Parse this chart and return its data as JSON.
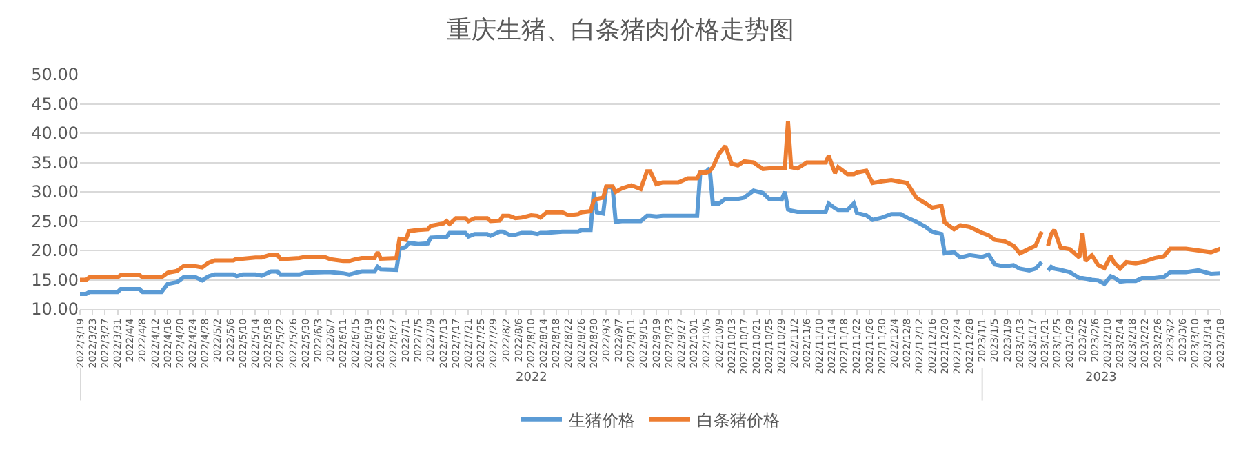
{
  "chart_data": {
    "type": "line",
    "title": "重庆生猪、白条猪肉价格走势图",
    "x": [
      "2022-03-19",
      "2022-03-21",
      "2022-03-22",
      "2022-03-31",
      "2022-04-01",
      "2022-04-07",
      "2022-04-08",
      "2022-04-14",
      "2022-04-16",
      "2022-04-19",
      "2022-04-21",
      "2022-04-25",
      "2022-04-27",
      "2022-04-29",
      "2022-05-01",
      "2022-05-07",
      "2022-05-08",
      "2022-05-10",
      "2022-05-14",
      "2022-05-16",
      "2022-05-19",
      "2022-05-21",
      "2022-05-22",
      "2022-05-28",
      "2022-05-30",
      "2022-06-05",
      "2022-06-07",
      "2022-06-11",
      "2022-06-13",
      "2022-06-15",
      "2022-06-17",
      "2022-06-21",
      "2022-06-22",
      "2022-06-23",
      "2022-06-28",
      "2022-06-29",
      "2022-07-01",
      "2022-07-02",
      "2022-07-05",
      "2022-07-08",
      "2022-07-09",
      "2022-07-13",
      "2022-07-14",
      "2022-07-15",
      "2022-07-17",
      "2022-07-20",
      "2022-07-21",
      "2022-07-23",
      "2022-07-27",
      "2022-07-28",
      "2022-07-31",
      "2022-08-01",
      "2022-08-03",
      "2022-08-05",
      "2022-08-07",
      "2022-08-10",
      "2022-08-12",
      "2022-08-13",
      "2022-08-15",
      "2022-08-20",
      "2022-08-22",
      "2022-08-25",
      "2022-08-26",
      "2022-08-29",
      "2022-08-30",
      "2022-08-31",
      "2022-09-02",
      "2022-09-03",
      "2022-09-05",
      "2022-09-06",
      "2022-09-08",
      "2022-09-11",
      "2022-09-14",
      "2022-09-16",
      "2022-09-17",
      "2022-09-19",
      "2022-09-21",
      "2022-09-26",
      "2022-09-29",
      "2022-10-02",
      "2022-10-03",
      "2022-10-05",
      "2022-10-06",
      "2022-10-07",
      "2022-10-09",
      "2022-10-11",
      "2022-10-13",
      "2022-10-15",
      "2022-10-17",
      "2022-10-20",
      "2022-10-23",
      "2022-10-25",
      "2022-10-29",
      "2022-10-30",
      "2022-10-31",
      "2022-11-01",
      "2022-11-03",
      "2022-11-06",
      "2022-11-12",
      "2022-11-13",
      "2022-11-15",
      "2022-11-16",
      "2022-11-19",
      "2022-11-21",
      "2022-11-22",
      "2022-11-25",
      "2022-11-27",
      "2022-11-30",
      "2022-12-03",
      "2022-12-06",
      "2022-12-08",
      "2022-12-11",
      "2022-12-14",
      "2022-12-16",
      "2022-12-19",
      "2022-12-20",
      "2022-12-23",
      "2022-12-25",
      "2022-12-28",
      "2023-01-01",
      "2023-01-03",
      "2023-01-05",
      "2023-01-08",
      "2023-01-11",
      "2023-01-13",
      "2023-01-16",
      "2023-01-18",
      "2023-01-20",
      "2023-01-21",
      "2023-01-22",
      "2023-01-23",
      "2023-01-24",
      "2023-01-26",
      "2023-01-29",
      "2023-02-01",
      "2023-02-02",
      "2023-02-03",
      "2023-02-05",
      "2023-02-07",
      "2023-02-09",
      "2023-02-11",
      "2023-02-12",
      "2023-02-14",
      "2023-02-16",
      "2023-02-19",
      "2023-02-21",
      "2023-02-25",
      "2023-02-28",
      "2023-03-02",
      "2023-03-07",
      "2023-03-11",
      "2023-03-15",
      "2023-03-18"
    ],
    "series": [
      {
        "name": "生猪价格",
        "color": "#5b9bd5",
        "values": [
          12.6,
          12.6,
          12.9,
          12.9,
          13.4,
          13.4,
          12.9,
          12.9,
          14.3,
          14.6,
          15.4,
          15.4,
          14.9,
          15.6,
          15.9,
          15.9,
          15.6,
          15.9,
          15.9,
          15.7,
          16.4,
          16.4,
          15.9,
          15.9,
          16.2,
          16.3,
          16.3,
          16.1,
          15.9,
          16.2,
          16.4,
          16.4,
          17.2,
          16.8,
          16.7,
          20.2,
          20.6,
          21.3,
          21.1,
          21.2,
          22.2,
          22.3,
          22.3,
          23.0,
          23.0,
          23.0,
          22.4,
          22.8,
          22.8,
          22.5,
          23.2,
          23.2,
          22.7,
          22.7,
          23.0,
          23.0,
          22.8,
          23.0,
          23.0,
          23.2,
          23.2,
          23.2,
          23.5,
          23.5,
          30.0,
          26.5,
          26.3,
          30.8,
          30.8,
          24.9,
          25.0,
          25.0,
          25.0,
          25.9,
          25.9,
          25.8,
          25.9,
          25.9,
          25.9,
          25.9,
          33.3,
          33.5,
          34.0,
          28.0,
          28.0,
          28.8,
          28.8,
          28.8,
          29.0,
          30.2,
          29.8,
          28.8,
          28.7,
          30.0,
          27.0,
          26.8,
          26.6,
          26.6,
          26.6,
          28.0,
          27.2,
          26.9,
          26.9,
          28.0,
          26.4,
          26.0,
          25.2,
          25.6,
          26.2,
          26.2,
          25.6,
          24.9,
          24.0,
          23.2,
          22.8,
          19.5,
          19.7,
          18.8,
          19.2,
          18.9,
          19.3,
          17.6,
          17.3,
          17.5,
          16.9,
          16.6,
          16.9,
          18.0,
          null,
          16.6,
          17.2,
          16.9,
          16.7,
          16.3,
          15.3,
          15.3,
          15.2,
          15.0,
          14.9,
          14.3,
          15.6,
          15.4,
          14.7,
          14.8,
          14.8,
          15.3,
          15.3,
          15.5,
          16.3,
          16.3,
          16.6,
          16.0,
          16.1
        ]
      },
      {
        "name": "白条猪价格",
        "color": "#ed7d31",
        "values": [
          15.0,
          15.0,
          15.4,
          15.4,
          15.8,
          15.8,
          15.4,
          15.4,
          16.2,
          16.5,
          17.3,
          17.3,
          17.1,
          17.9,
          18.3,
          18.3,
          18.6,
          18.6,
          18.8,
          18.8,
          19.3,
          19.3,
          18.5,
          18.7,
          18.9,
          18.9,
          18.5,
          18.2,
          18.2,
          18.5,
          18.7,
          18.7,
          19.7,
          18.6,
          18.7,
          22.0,
          21.8,
          23.3,
          23.5,
          23.6,
          24.2,
          24.6,
          25.0,
          24.5,
          25.5,
          25.5,
          25.0,
          25.5,
          25.5,
          25.0,
          25.1,
          25.9,
          25.9,
          25.5,
          25.6,
          26.0,
          25.9,
          25.6,
          26.5,
          26.5,
          26.0,
          26.2,
          26.5,
          26.7,
          28.5,
          28.8,
          29.0,
          30.9,
          30.9,
          30.0,
          30.6,
          31.1,
          30.5,
          33.5,
          33.5,
          31.3,
          31.6,
          31.6,
          32.3,
          32.3,
          33.3,
          33.3,
          33.5,
          34.2,
          36.5,
          37.8,
          34.8,
          34.5,
          35.2,
          35.0,
          33.9,
          34.0,
          34.0,
          34.0,
          42.0,
          34.2,
          34.0,
          35.0,
          35.0,
          36.1,
          33.2,
          34.2,
          33.0,
          33.0,
          33.3,
          33.6,
          31.5,
          31.8,
          32.0,
          31.7,
          31.5,
          29.0,
          28.0,
          27.3,
          27.6,
          24.8,
          23.6,
          24.3,
          24.0,
          23.0,
          22.6,
          21.8,
          21.6,
          20.8,
          19.5,
          20.3,
          20.8,
          23.2,
          null,
          20.8,
          22.8,
          23.5,
          20.5,
          20.2,
          18.8,
          23.0,
          18.2,
          19.2,
          17.5,
          17.0,
          19.0,
          18.0,
          16.9,
          18.0,
          17.8,
          18.0,
          18.7,
          19.0,
          20.3,
          20.3,
          20.0,
          19.7,
          20.3
        ]
      }
    ],
    "ylim": [
      10,
      50
    ],
    "yticks": [
      {
        "value": 10,
        "label": "10.00"
      },
      {
        "value": 15,
        "label": "15.00"
      },
      {
        "value": 20,
        "label": "20.00"
      },
      {
        "value": 25,
        "label": "25.00"
      },
      {
        "value": 30,
        "label": "30.00"
      },
      {
        "value": 35,
        "label": "35.00"
      },
      {
        "value": 40,
        "label": "40.00"
      },
      {
        "value": 45,
        "label": "45.00"
      },
      {
        "value": 50,
        "label": "50.00"
      }
    ],
    "xlim": [
      "2022-03-19",
      "2023-03-18"
    ],
    "xticks": [
      {
        "value": "2022-03-19",
        "label": "2022/3/19"
      },
      {
        "value": "2022-03-23",
        "label": "2022/3/23"
      },
      {
        "value": "2022-03-27",
        "label": "2022/3/27"
      },
      {
        "value": "2022-03-31",
        "label": "2022/3/31"
      },
      {
        "value": "2022-04-04",
        "label": "2022/4/4"
      },
      {
        "value": "2022-04-08",
        "label": "2022/4/8"
      },
      {
        "value": "2022-04-12",
        "label": "2022/4/12"
      },
      {
        "value": "2022-04-16",
        "label": "2022/4/16"
      },
      {
        "value": "2022-04-20",
        "label": "2022/4/20"
      },
      {
        "value": "2022-04-24",
        "label": "2022/4/24"
      },
      {
        "value": "2022-04-28",
        "label": "2022/4/28"
      },
      {
        "value": "2022-05-02",
        "label": "2022/5/2"
      },
      {
        "value": "2022-05-06",
        "label": "2022/5/6"
      },
      {
        "value": "2022-05-10",
        "label": "2022/5/10"
      },
      {
        "value": "2022-05-14",
        "label": "2022/5/14"
      },
      {
        "value": "2022-05-18",
        "label": "2022/5/18"
      },
      {
        "value": "2022-05-22",
        "label": "2022/5/22"
      },
      {
        "value": "2022-05-26",
        "label": "2022/5/26"
      },
      {
        "value": "2022-05-30",
        "label": "2022/5/30"
      },
      {
        "value": "2022-06-03",
        "label": "2022/6/3"
      },
      {
        "value": "2022-06-07",
        "label": "2022/6/7"
      },
      {
        "value": "2022-06-11",
        "label": "2022/6/11"
      },
      {
        "value": "2022-06-15",
        "label": "2022/6/15"
      },
      {
        "value": "2022-06-19",
        "label": "2022/6/19"
      },
      {
        "value": "2022-06-23",
        "label": "2022/6/23"
      },
      {
        "value": "2022-06-27",
        "label": "2022/6/27"
      },
      {
        "value": "2022-07-01",
        "label": "2022/7/1"
      },
      {
        "value": "2022-07-05",
        "label": "2022/7/5"
      },
      {
        "value": "2022-07-09",
        "label": "2022/7/9"
      },
      {
        "value": "2022-07-13",
        "label": "2022/7/13"
      },
      {
        "value": "2022-07-17",
        "label": "2022/7/17"
      },
      {
        "value": "2022-07-21",
        "label": "2022/7/21"
      },
      {
        "value": "2022-07-25",
        "label": "2022/7/25"
      },
      {
        "value": "2022-07-29",
        "label": "2022/7/29"
      },
      {
        "value": "2022-08-02",
        "label": "2022/8/2"
      },
      {
        "value": "2022-08-06",
        "label": "2022/8/6"
      },
      {
        "value": "2022-08-10",
        "label": "2022/8/10"
      },
      {
        "value": "2022-08-14",
        "label": "2022/8/14"
      },
      {
        "value": "2022-08-18",
        "label": "2022/8/18"
      },
      {
        "value": "2022-08-22",
        "label": "2022/8/22"
      },
      {
        "value": "2022-08-26",
        "label": "2022/8/26"
      },
      {
        "value": "2022-08-30",
        "label": "2022/8/30"
      },
      {
        "value": "2022-09-03",
        "label": "2022/9/3"
      },
      {
        "value": "2022-09-07",
        "label": "2022/9/7"
      },
      {
        "value": "2022-09-11",
        "label": "2022/9/11"
      },
      {
        "value": "2022-09-15",
        "label": "2022/9/15"
      },
      {
        "value": "2022-09-19",
        "label": "2022/9/19"
      },
      {
        "value": "2022-09-23",
        "label": "2022/9/23"
      },
      {
        "value": "2022-09-27",
        "label": "2022/9/27"
      },
      {
        "value": "2022-10-01",
        "label": "2022/10/1"
      },
      {
        "value": "2022-10-05",
        "label": "2022/10/5"
      },
      {
        "value": "2022-10-09",
        "label": "2022/10/9"
      },
      {
        "value": "2022-10-13",
        "label": "2022/10/13"
      },
      {
        "value": "2022-10-17",
        "label": "2022/10/17"
      },
      {
        "value": "2022-10-21",
        "label": "2022/10/21"
      },
      {
        "value": "2022-10-25",
        "label": "2022/10/25"
      },
      {
        "value": "2022-10-29",
        "label": "2022/10/29"
      },
      {
        "value": "2022-11-02",
        "label": "2022/11/2"
      },
      {
        "value": "2022-11-06",
        "label": "2022/11/6"
      },
      {
        "value": "2022-11-10",
        "label": "2022/11/10"
      },
      {
        "value": "2022-11-14",
        "label": "2022/11/14"
      },
      {
        "value": "2022-11-18",
        "label": "2022/11/18"
      },
      {
        "value": "2022-11-22",
        "label": "2022/11/22"
      },
      {
        "value": "2022-11-26",
        "label": "2022/11/26"
      },
      {
        "value": "2022-11-30",
        "label": "2022/11/30"
      },
      {
        "value": "2022-12-04",
        "label": "2022/12/4"
      },
      {
        "value": "2022-12-08",
        "label": "2022/12/8"
      },
      {
        "value": "2022-12-12",
        "label": "2022/12/12"
      },
      {
        "value": "2022-12-16",
        "label": "2022/12/16"
      },
      {
        "value": "2022-12-20",
        "label": "2022/12/20"
      },
      {
        "value": "2022-12-24",
        "label": "2022/12/24"
      },
      {
        "value": "2022-12-28",
        "label": "2022/12/28"
      },
      {
        "value": "2023-01-01",
        "label": "2023/1/1"
      },
      {
        "value": "2023-01-05",
        "label": "2023/1/5"
      },
      {
        "value": "2023-01-09",
        "label": "2023/1/9"
      },
      {
        "value": "2023-01-13",
        "label": "2023/1/13"
      },
      {
        "value": "2023-01-17",
        "label": "2023/1/17"
      },
      {
        "value": "2023-01-21",
        "label": "2023/1/21"
      },
      {
        "value": "2023-01-25",
        "label": "2023/1/25"
      },
      {
        "value": "2023-01-29",
        "label": "2023/1/29"
      },
      {
        "value": "2023-02-02",
        "label": "2023/2/2"
      },
      {
        "value": "2023-02-06",
        "label": "2023/2/6"
      },
      {
        "value": "2023-02-10",
        "label": "2023/2/10"
      },
      {
        "value": "2023-02-14",
        "label": "2023/2/14"
      },
      {
        "value": "2023-02-18",
        "label": "2023/2/18"
      },
      {
        "value": "2023-02-22",
        "label": "2023/2/22"
      },
      {
        "value": "2023-02-26",
        "label": "2023/2/26"
      },
      {
        "value": "2023-03-02",
        "label": "2023/3/2"
      },
      {
        "value": "2023-03-06",
        "label": "2023/3/6"
      },
      {
        "value": "2023-03-10",
        "label": "2023/3/10"
      },
      {
        "value": "2023-03-14",
        "label": "2023/3/14"
      },
      {
        "value": "2023-03-18",
        "label": "2023/3/18"
      }
    ],
    "annotations": [
      "2022",
      "2023"
    ],
    "grid": "y",
    "legend": "bottom",
    "marker": "none",
    "line_style": "solid"
  }
}
